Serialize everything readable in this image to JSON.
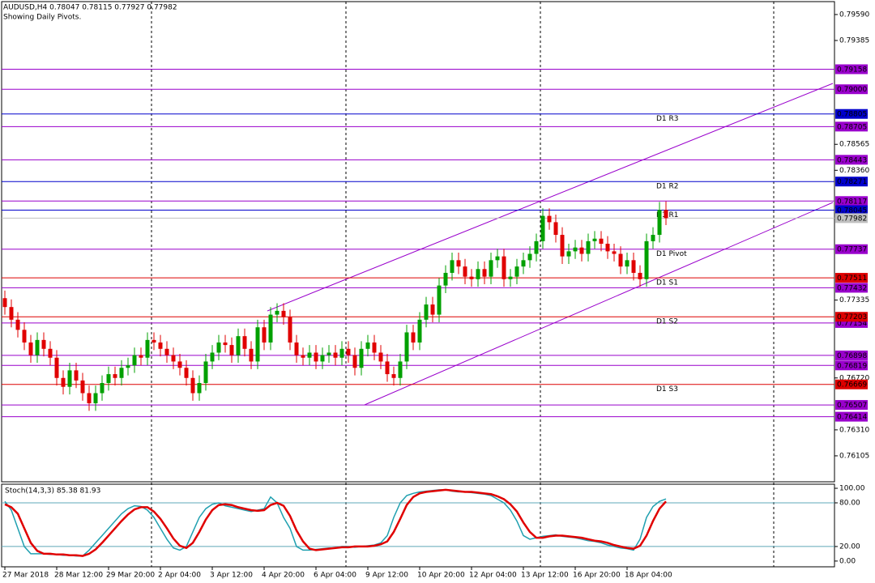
{
  "chart_data": [
    {
      "type": "candlestick",
      "title": "AUDUSD,H4  0.78047 0.78115 0.77927 0.77982",
      "subtitle": "Showing Daily Pivots.",
      "categories": [
        "27 Mar 2018",
        null,
        null,
        null,
        null,
        null,
        null,
        null,
        "28 Mar 12:00",
        null,
        null,
        null,
        null,
        null,
        null,
        null,
        "29 Mar 20:00",
        null,
        null,
        null,
        null,
        null,
        null,
        null,
        "2 Apr 04:00",
        null,
        null,
        null,
        null,
        null,
        null,
        null,
        "3 Apr 12:00",
        null,
        null,
        null,
        null,
        null,
        null,
        null,
        "4 Apr 20:00",
        null,
        null,
        null,
        null,
        null,
        null,
        null,
        "6 Apr 04:00",
        null,
        null,
        null,
        null,
        null,
        null,
        null,
        "9 Apr 12:00",
        null,
        null,
        null,
        null,
        null,
        null,
        null,
        "10 Apr 20:00",
        null,
        null,
        null,
        null,
        null,
        null,
        null,
        "12 Apr 04:00",
        null,
        null,
        null,
        null,
        null,
        null,
        null,
        "13 Apr 12:00",
        null,
        null,
        null,
        null,
        null,
        null,
        null,
        "16 Apr 20:00",
        null,
        null,
        null,
        null,
        null,
        null,
        null,
        "18 Apr 04:00",
        null,
        null,
        null,
        null,
        null,
        null
      ],
      "open": [
        0.7735,
        0.7728,
        0.7718,
        0.771,
        0.77,
        0.769,
        0.7702,
        0.7695,
        0.7688,
        0.7672,
        0.7665,
        0.7678,
        0.767,
        0.766,
        0.7652,
        0.766,
        0.7668,
        0.7675,
        0.7672,
        0.768,
        0.7682,
        0.769,
        0.7688,
        0.7702,
        0.77,
        0.7695,
        0.769,
        0.7685,
        0.768,
        0.7672,
        0.766,
        0.7668,
        0.7685,
        0.7692,
        0.77,
        0.7698,
        0.769,
        0.7705,
        0.7695,
        0.7685,
        0.7712,
        0.77,
        0.7722,
        0.7725,
        0.772,
        0.77,
        0.769,
        0.7688,
        0.7692,
        0.7685,
        0.769,
        0.7692,
        0.7688,
        0.7695,
        0.769,
        0.768,
        0.7695,
        0.77,
        0.7692,
        0.7685,
        0.7675,
        0.7672,
        0.7685,
        0.7708,
        0.77,
        0.7718,
        0.773,
        0.7722,
        0.7745,
        0.7755,
        0.7765,
        0.776,
        0.7752,
        0.775,
        0.7758,
        0.7752,
        0.7765,
        0.7768,
        0.775,
        0.7752,
        0.776,
        0.7765,
        0.777,
        0.778,
        0.78,
        0.7795,
        0.7785,
        0.7768,
        0.7772,
        0.7775,
        0.777,
        0.778,
        0.7782,
        0.7778,
        0.7772,
        0.777,
        0.776,
        0.7765,
        0.7755,
        0.775,
        0.778,
        0.7785,
        0.78047
      ],
      "high": [
        0.7741,
        0.7734,
        0.7724,
        0.7716,
        0.7706,
        0.7708,
        0.7708,
        0.7701,
        0.7694,
        0.7678,
        0.7684,
        0.7684,
        0.7676,
        0.7666,
        0.7666,
        0.7674,
        0.7681,
        0.7681,
        0.7686,
        0.7688,
        0.7696,
        0.7696,
        0.7708,
        0.7708,
        0.7706,
        0.7701,
        0.7696,
        0.7691,
        0.7686,
        0.7678,
        0.7674,
        0.7691,
        0.7698,
        0.7706,
        0.7706,
        0.7704,
        0.7711,
        0.7711,
        0.7701,
        0.7718,
        0.7718,
        0.7728,
        0.7731,
        0.7731,
        0.7726,
        0.7706,
        0.7696,
        0.7698,
        0.7698,
        0.7696,
        0.7698,
        0.7698,
        0.7701,
        0.7701,
        0.7696,
        0.7701,
        0.7706,
        0.7706,
        0.7698,
        0.7691,
        0.7681,
        0.7691,
        0.7714,
        0.7714,
        0.7724,
        0.7736,
        0.7736,
        0.7751,
        0.7761,
        0.7771,
        0.7771,
        0.7766,
        0.7758,
        0.7764,
        0.7764,
        0.7771,
        0.7774,
        0.7774,
        0.7758,
        0.7766,
        0.7771,
        0.7776,
        0.7786,
        0.7806,
        0.7806,
        0.7801,
        0.7791,
        0.7778,
        0.7781,
        0.7781,
        0.7786,
        0.7788,
        0.7788,
        0.7784,
        0.7778,
        0.7776,
        0.7771,
        0.7771,
        0.7761,
        0.7786,
        0.7791,
        0.7811,
        0.78115
      ],
      "low": [
        0.7722,
        0.7712,
        0.7704,
        0.7694,
        0.7684,
        0.7684,
        0.7689,
        0.7682,
        0.7666,
        0.7659,
        0.7659,
        0.7664,
        0.7654,
        0.7646,
        0.7646,
        0.7654,
        0.7662,
        0.7666,
        0.7666,
        0.7674,
        0.7676,
        0.7682,
        0.7682,
        0.7694,
        0.7689,
        0.7684,
        0.7679,
        0.7674,
        0.7666,
        0.7654,
        0.7654,
        0.7662,
        0.7679,
        0.7686,
        0.7692,
        0.7684,
        0.7684,
        0.7689,
        0.7679,
        0.7679,
        0.7694,
        0.7694,
        0.7716,
        0.7714,
        0.7694,
        0.7684,
        0.7682,
        0.7682,
        0.7679,
        0.7679,
        0.7684,
        0.7682,
        0.7682,
        0.7684,
        0.7674,
        0.7674,
        0.7689,
        0.7686,
        0.7679,
        0.7669,
        0.7666,
        0.7666,
        0.7679,
        0.7694,
        0.7694,
        0.7712,
        0.7716,
        0.7716,
        0.7739,
        0.7749,
        0.7754,
        0.7746,
        0.7744,
        0.7744,
        0.7746,
        0.7746,
        0.7759,
        0.7744,
        0.7744,
        0.7746,
        0.7754,
        0.7759,
        0.7764,
        0.7774,
        0.7789,
        0.7779,
        0.7762,
        0.7762,
        0.7766,
        0.7764,
        0.7764,
        0.7774,
        0.7772,
        0.7766,
        0.7764,
        0.7754,
        0.7754,
        0.7749,
        0.7744,
        0.7744,
        0.7774,
        0.7779,
        0.77927
      ],
      "close": [
        0.7728,
        0.7718,
        0.771,
        0.77,
        0.769,
        0.7702,
        0.7695,
        0.7688,
        0.7672,
        0.7665,
        0.7678,
        0.767,
        0.766,
        0.7652,
        0.766,
        0.7668,
        0.7675,
        0.7672,
        0.768,
        0.7682,
        0.769,
        0.7688,
        0.7702,
        0.77,
        0.7695,
        0.769,
        0.7685,
        0.768,
        0.7672,
        0.766,
        0.7668,
        0.7685,
        0.7692,
        0.77,
        0.7698,
        0.769,
        0.7705,
        0.7695,
        0.7685,
        0.7712,
        0.77,
        0.7722,
        0.7725,
        0.772,
        0.77,
        0.769,
        0.7688,
        0.7692,
        0.7685,
        0.769,
        0.7692,
        0.7688,
        0.7695,
        0.769,
        0.768,
        0.7695,
        0.77,
        0.7692,
        0.7685,
        0.7675,
        0.7672,
        0.7685,
        0.7708,
        0.77,
        0.7718,
        0.773,
        0.7722,
        0.7745,
        0.7755,
        0.7765,
        0.776,
        0.7752,
        0.775,
        0.7758,
        0.7752,
        0.7765,
        0.7768,
        0.775,
        0.7752,
        0.776,
        0.7765,
        0.777,
        0.778,
        0.78,
        0.7795,
        0.7785,
        0.7768,
        0.7772,
        0.7775,
        0.777,
        0.778,
        0.7782,
        0.7778,
        0.7772,
        0.777,
        0.776,
        0.7765,
        0.7755,
        0.775,
        0.778,
        0.7785,
        0.78047,
        0.77982
      ],
      "up_color": "#00a000",
      "down_color": "#e00000",
      "ylim": [
        0.759,
        0.79692
      ],
      "yticks": [
        {
          "value": 0.7959,
          "label": "0.79590"
        },
        {
          "value": 0.79385,
          "label": "0.79385"
        },
        {
          "value": 0.78565,
          "label": "0.78565"
        },
        {
          "value": 0.7836,
          "label": "0.78360"
        },
        {
          "value": 0.77335,
          "label": "0.77335"
        },
        {
          "value": 0.7672,
          "label": "0.76720"
        },
        {
          "value": 0.7631,
          "label": "0.76310"
        },
        {
          "value": 0.76105,
          "label": "0.76105"
        }
      ],
      "levels": [
        {
          "value": 0.79158,
          "label": "0.79158",
          "color": "#9900cc"
        },
        {
          "value": 0.79,
          "label": "0.79000",
          "color": "#9900cc"
        },
        {
          "value": 0.78805,
          "label": "0.78805",
          "color": "#0000cc",
          "name": "D1 R3"
        },
        {
          "value": 0.78705,
          "label": "0.78705",
          "color": "#9900cc"
        },
        {
          "value": 0.78443,
          "label": "0.78443",
          "color": "#9900cc"
        },
        {
          "value": 0.78271,
          "label": "0.78271",
          "color": "#0000cc",
          "name": "D1 R2"
        },
        {
          "value": 0.78117,
          "label": "0.78117",
          "color": "#9900cc"
        },
        {
          "value": 0.78045,
          "label": "0.78045",
          "color": "#0000cc",
          "name": "D1 R1"
        },
        {
          "value": 0.77982,
          "label": "0.77982",
          "color": "#c0c0c0"
        },
        {
          "value": 0.77737,
          "label": "0.77737",
          "color": "#9900cc",
          "name": "D1 Pivot"
        },
        {
          "value": 0.77511,
          "label": "0.77511",
          "color": "#dd0000",
          "name": "D1 S1"
        },
        {
          "value": 0.77432,
          "label": "0.77432",
          "color": "#9900cc"
        },
        {
          "value": 0.77154,
          "label": "0.77154",
          "color": "#9900cc"
        },
        {
          "value": 0.77203,
          "label": "0.77203",
          "color": "#dd0000",
          "name": "D1 S2"
        },
        {
          "value": 0.76898,
          "label": "0.76898",
          "color": "#9900cc"
        },
        {
          "value": 0.76819,
          "label": "0.76819",
          "color": "#9900cc"
        },
        {
          "value": 0.76669,
          "label": "0.76669",
          "color": "#dd0000",
          "name": "D1 S3"
        },
        {
          "value": 0.76507,
          "label": "0.76507",
          "color": "#9900cc"
        },
        {
          "value": 0.76414,
          "label": "0.76414",
          "color": "#9900cc"
        }
      ]
    },
    {
      "type": "line",
      "title": "Stoch(14,3,3) 85.38 81.93",
      "series": [
        {
          "color": "#20a0b0",
          "values": [
            82,
            70,
            45,
            20,
            10,
            10,
            10,
            9,
            9,
            8,
            8,
            7,
            7,
            15,
            25,
            35,
            45,
            55,
            65,
            72,
            76,
            75,
            70,
            60,
            45,
            30,
            18,
            15,
            20,
            40,
            60,
            72,
            78,
            80,
            76,
            74,
            72,
            70,
            68,
            70,
            72,
            88,
            80,
            60,
            45,
            20,
            15,
            15,
            16,
            17,
            18,
            18,
            20,
            20,
            19,
            20,
            21,
            22,
            25,
            35,
            60,
            80,
            90,
            93,
            95,
            96,
            97,
            98,
            98,
            96,
            95,
            95,
            94,
            93,
            92,
            90,
            85,
            80,
            70,
            55,
            35,
            30,
            32,
            34,
            35,
            36,
            34,
            33,
            32,
            30,
            28,
            27,
            25,
            22,
            20,
            18,
            17,
            15,
            30,
            60,
            75,
            82,
            85.38
          ]
        },
        {
          "color": "#e00000",
          "values": [
            78,
            74,
            65,
            45,
            25,
            14,
            10,
            10,
            9,
            9,
            8,
            8,
            7,
            10,
            16,
            25,
            35,
            45,
            55,
            64,
            71,
            74,
            74,
            68,
            58,
            45,
            31,
            21,
            18,
            25,
            40,
            57,
            70,
            77,
            78,
            77,
            74,
            72,
            70,
            69,
            70,
            77,
            80,
            76,
            62,
            42,
            27,
            17,
            15,
            16,
            17,
            18,
            19,
            19,
            20,
            20,
            20,
            21,
            23,
            27,
            40,
            58,
            77,
            88,
            93,
            95,
            96,
            97,
            98,
            97,
            96,
            95,
            95,
            94,
            93,
            92,
            89,
            85,
            78,
            68,
            53,
            40,
            32,
            32,
            34,
            35,
            35,
            34,
            33,
            32,
            30,
            28,
            27,
            25,
            22,
            20,
            18,
            17,
            21,
            35,
            55,
            72,
            81.93
          ]
        }
      ],
      "ylim": [
        -7.9,
        105.6
      ],
      "yticks": [
        {
          "value": 100,
          "label": "100.00"
        },
        {
          "value": 80,
          "label": "80.00"
        },
        {
          "value": 20,
          "label": "20.00"
        },
        {
          "value": 0,
          "label": "0.00"
        }
      ],
      "levels": [
        80,
        20
      ]
    }
  ]
}
